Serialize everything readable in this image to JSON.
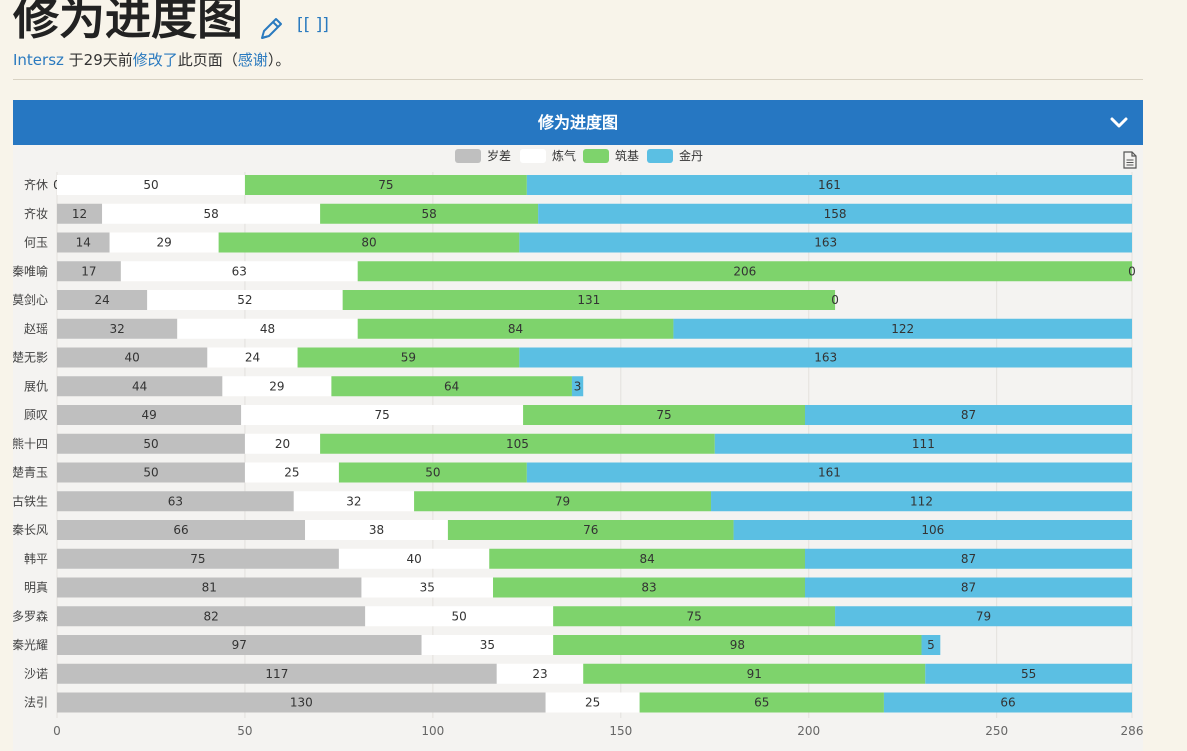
{
  "page": {
    "title": "修为进度图",
    "wiki_link": "[[ ]]",
    "meta": {
      "user": "Intersz",
      "text1": " 于29天前",
      "modified": "修改了",
      "text2": "此页面（",
      "thanks": "感谢",
      "text3": "）。"
    }
  },
  "panel": {
    "title": "修为进度图"
  },
  "colors": {
    "brand": "#2677c2",
    "岁差": "#bfbfbf",
    "炼气": "#ffffff",
    "筑基": "#7ed36c",
    "金丹": "#5bbfe3"
  },
  "chart_data": {
    "type": "bar",
    "orientation": "horizontal",
    "stacked": true,
    "title": "修为进度图",
    "xlim": [
      0,
      286
    ],
    "x_ticks": [
      "0",
      "50",
      "100",
      "150",
      "200",
      "250",
      "286"
    ],
    "legend_position": "top-center",
    "grid": true,
    "categories": [
      "齐休",
      "齐妆",
      "何玉",
      "秦唯喻",
      "莫剑心",
      "赵瑶",
      "楚无影",
      "展仇",
      "顾叹",
      "熊十四",
      "楚青玉",
      "古铁生",
      "秦长风",
      "韩平",
      "明真",
      "多罗森",
      "秦光耀",
      "沙诺",
      "法引"
    ],
    "series": [
      {
        "name": "岁差",
        "values": [
          0,
          12,
          14,
          17,
          24,
          32,
          40,
          44,
          49,
          50,
          50,
          63,
          66,
          75,
          81,
          82,
          97,
          117,
          130
        ]
      },
      {
        "name": "炼气",
        "values": [
          50,
          58,
          29,
          63,
          52,
          48,
          24,
          29,
          75,
          20,
          25,
          32,
          38,
          40,
          35,
          50,
          35,
          23,
          25
        ]
      },
      {
        "name": "筑基",
        "values": [
          75,
          58,
          80,
          206,
          131,
          84,
          59,
          64,
          75,
          105,
          50,
          79,
          76,
          84,
          83,
          75,
          98,
          91,
          65
        ]
      },
      {
        "name": "金丹",
        "values": [
          161,
          158,
          163,
          0,
          0,
          122,
          163,
          3,
          87,
          111,
          161,
          112,
          106,
          87,
          87,
          79,
          5,
          55,
          66
        ]
      }
    ]
  }
}
